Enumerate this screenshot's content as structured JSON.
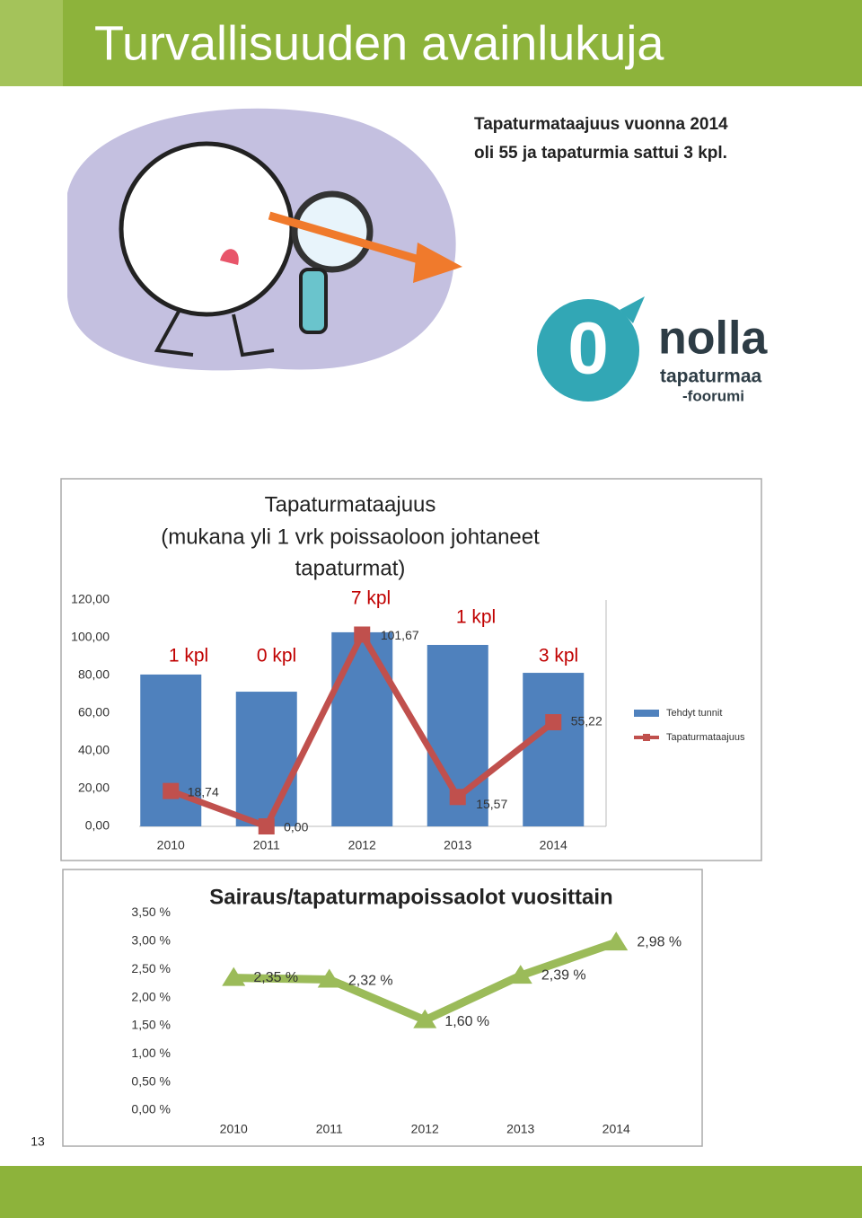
{
  "header": {
    "title": "Turvallisuuden avainlukuja"
  },
  "intro": [
    "Tapaturmataajuus vuonna 2014",
    "oli 55 ja tapaturmia sattui 3 kpl."
  ],
  "logo": {
    "mark": "0",
    "name": "nolla",
    "line1": "tapaturmaa",
    "line2": "-foorumi"
  },
  "chart_data": [
    {
      "type": "combo",
      "title": [
        "Tapaturmataajuus",
        "(mukana yli 1 vrk poissaoloon johtaneet",
        "tapaturmat)"
      ],
      "categories": [
        "2010",
        "2011",
        "2012",
        "2013",
        "2014"
      ],
      "series": [
        {
          "name": "Tehdyt tunnit",
          "type": "bar",
          "color": "#4f81bd",
          "values": [
            80.5,
            71.4,
            102.9,
            96.2,
            81.4
          ]
        },
        {
          "name": "Tapaturmataajuus",
          "type": "line",
          "color": "#c0504d",
          "values": [
            18.74,
            0,
            101.67,
            15.57,
            55.22
          ],
          "value_labels": [
            "18,74",
            "0,00",
            "101,67",
            "15,57",
            "55,22"
          ]
        }
      ],
      "annotations": [
        "1 kpl",
        "0 kpl",
        "7 kpl",
        "1 kpl",
        "3 kpl"
      ],
      "ylim": [
        0,
        120
      ],
      "yticks": [
        {
          "value": 0,
          "label": "0,00"
        },
        {
          "value": 20,
          "label": "20,00"
        },
        {
          "value": 40,
          "label": "40,00"
        },
        {
          "value": 60,
          "label": "60,00"
        },
        {
          "value": 80,
          "label": "80,00"
        },
        {
          "value": 100,
          "label": "100,00"
        },
        {
          "value": 120,
          "label": "120,00"
        }
      ],
      "legend": "right"
    },
    {
      "type": "line",
      "title": [
        "Sairaus/tapaturmapoissaolot vuosittain"
      ],
      "categories": [
        "2010",
        "2011",
        "2012",
        "2013",
        "2014"
      ],
      "color": "#9bbb59",
      "values": [
        2.35,
        2.32,
        1.6,
        2.39,
        2.98
      ],
      "value_labels": [
        "2,35 %",
        "2,32 %",
        "1,60 %",
        "2,39 %",
        "2,98 %"
      ],
      "ylim": [
        0,
        3.5
      ],
      "yticks": [
        {
          "value": 0,
          "label": "0,00 %"
        },
        {
          "value": 0.5,
          "label": "0,50 %"
        },
        {
          "value": 1,
          "label": "1,00 %"
        },
        {
          "value": 1.5,
          "label": "1,50 %"
        },
        {
          "value": 2,
          "label": "2,00 %"
        },
        {
          "value": 2.5,
          "label": "2,50 %"
        },
        {
          "value": 3,
          "label": "3,00 %"
        },
        {
          "value": 3.5,
          "label": "3,50 %"
        }
      ]
    }
  ],
  "page_number": "13"
}
